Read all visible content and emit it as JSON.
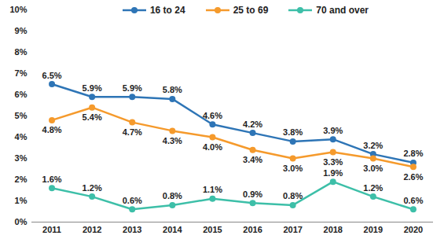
{
  "chart_data": {
    "type": "line",
    "x": [
      2011,
      2012,
      2013,
      2014,
      2015,
      2016,
      2017,
      2018,
      2019,
      2020
    ],
    "xlim": [
      2010.5,
      2020.5
    ],
    "xticks": [
      2011,
      2012,
      2013,
      2014,
      2015,
      2016,
      2017,
      2018,
      2019,
      2020
    ],
    "ylim": [
      0,
      10
    ],
    "yticks": [
      {
        "value": 0,
        "label": "0%"
      },
      {
        "value": 1,
        "label": "1%"
      },
      {
        "value": 2,
        "label": "2%"
      },
      {
        "value": 3,
        "label": "3%"
      },
      {
        "value": 4,
        "label": "4%"
      },
      {
        "value": 5,
        "label": "5%"
      },
      {
        "value": 6,
        "label": "6%"
      },
      {
        "value": 7,
        "label": "7%"
      },
      {
        "value": 8,
        "label": "8%"
      },
      {
        "value": 9,
        "label": "9%"
      },
      {
        "value": 10,
        "label": "10%"
      }
    ],
    "grid": false,
    "legend": "top",
    "data_labels": true,
    "marker": "circle",
    "series": [
      {
        "name": "16 to 24",
        "color": "#2E75B6",
        "values": [
          6.5,
          5.9,
          5.9,
          5.8,
          4.6,
          4.2,
          3.8,
          3.9,
          3.2,
          2.8
        ],
        "value_labels": [
          "6.5%",
          "5.9%",
          "5.9%",
          "5.8%",
          "4.6%",
          "4.2%",
          "3.8%",
          "3.9%",
          "3.2%",
          "2.8%"
        ]
      },
      {
        "name": "25 to 69",
        "color": "#F59A2C",
        "values": [
          4.8,
          5.4,
          4.7,
          4.3,
          4.0,
          3.4,
          3.0,
          3.3,
          3.0,
          2.6
        ],
        "value_labels": [
          "4.8%",
          "5.4%",
          "4.7%",
          "4.3%",
          "4.0%",
          "3.4%",
          "3.0%",
          "3.3%",
          "3.0%",
          "2.6%"
        ]
      },
      {
        "name": "70 and over",
        "color": "#3DBFA8",
        "values": [
          1.6,
          1.2,
          0.6,
          0.8,
          1.1,
          0.9,
          0.8,
          1.9,
          1.2,
          0.6
        ],
        "value_labels": [
          "1.6%",
          "1.2%",
          "0.6%",
          "0.8%",
          "1.1%",
          "0.9%",
          "0.8%",
          "1.9%",
          "1.2%",
          "0.6%"
        ]
      }
    ]
  }
}
